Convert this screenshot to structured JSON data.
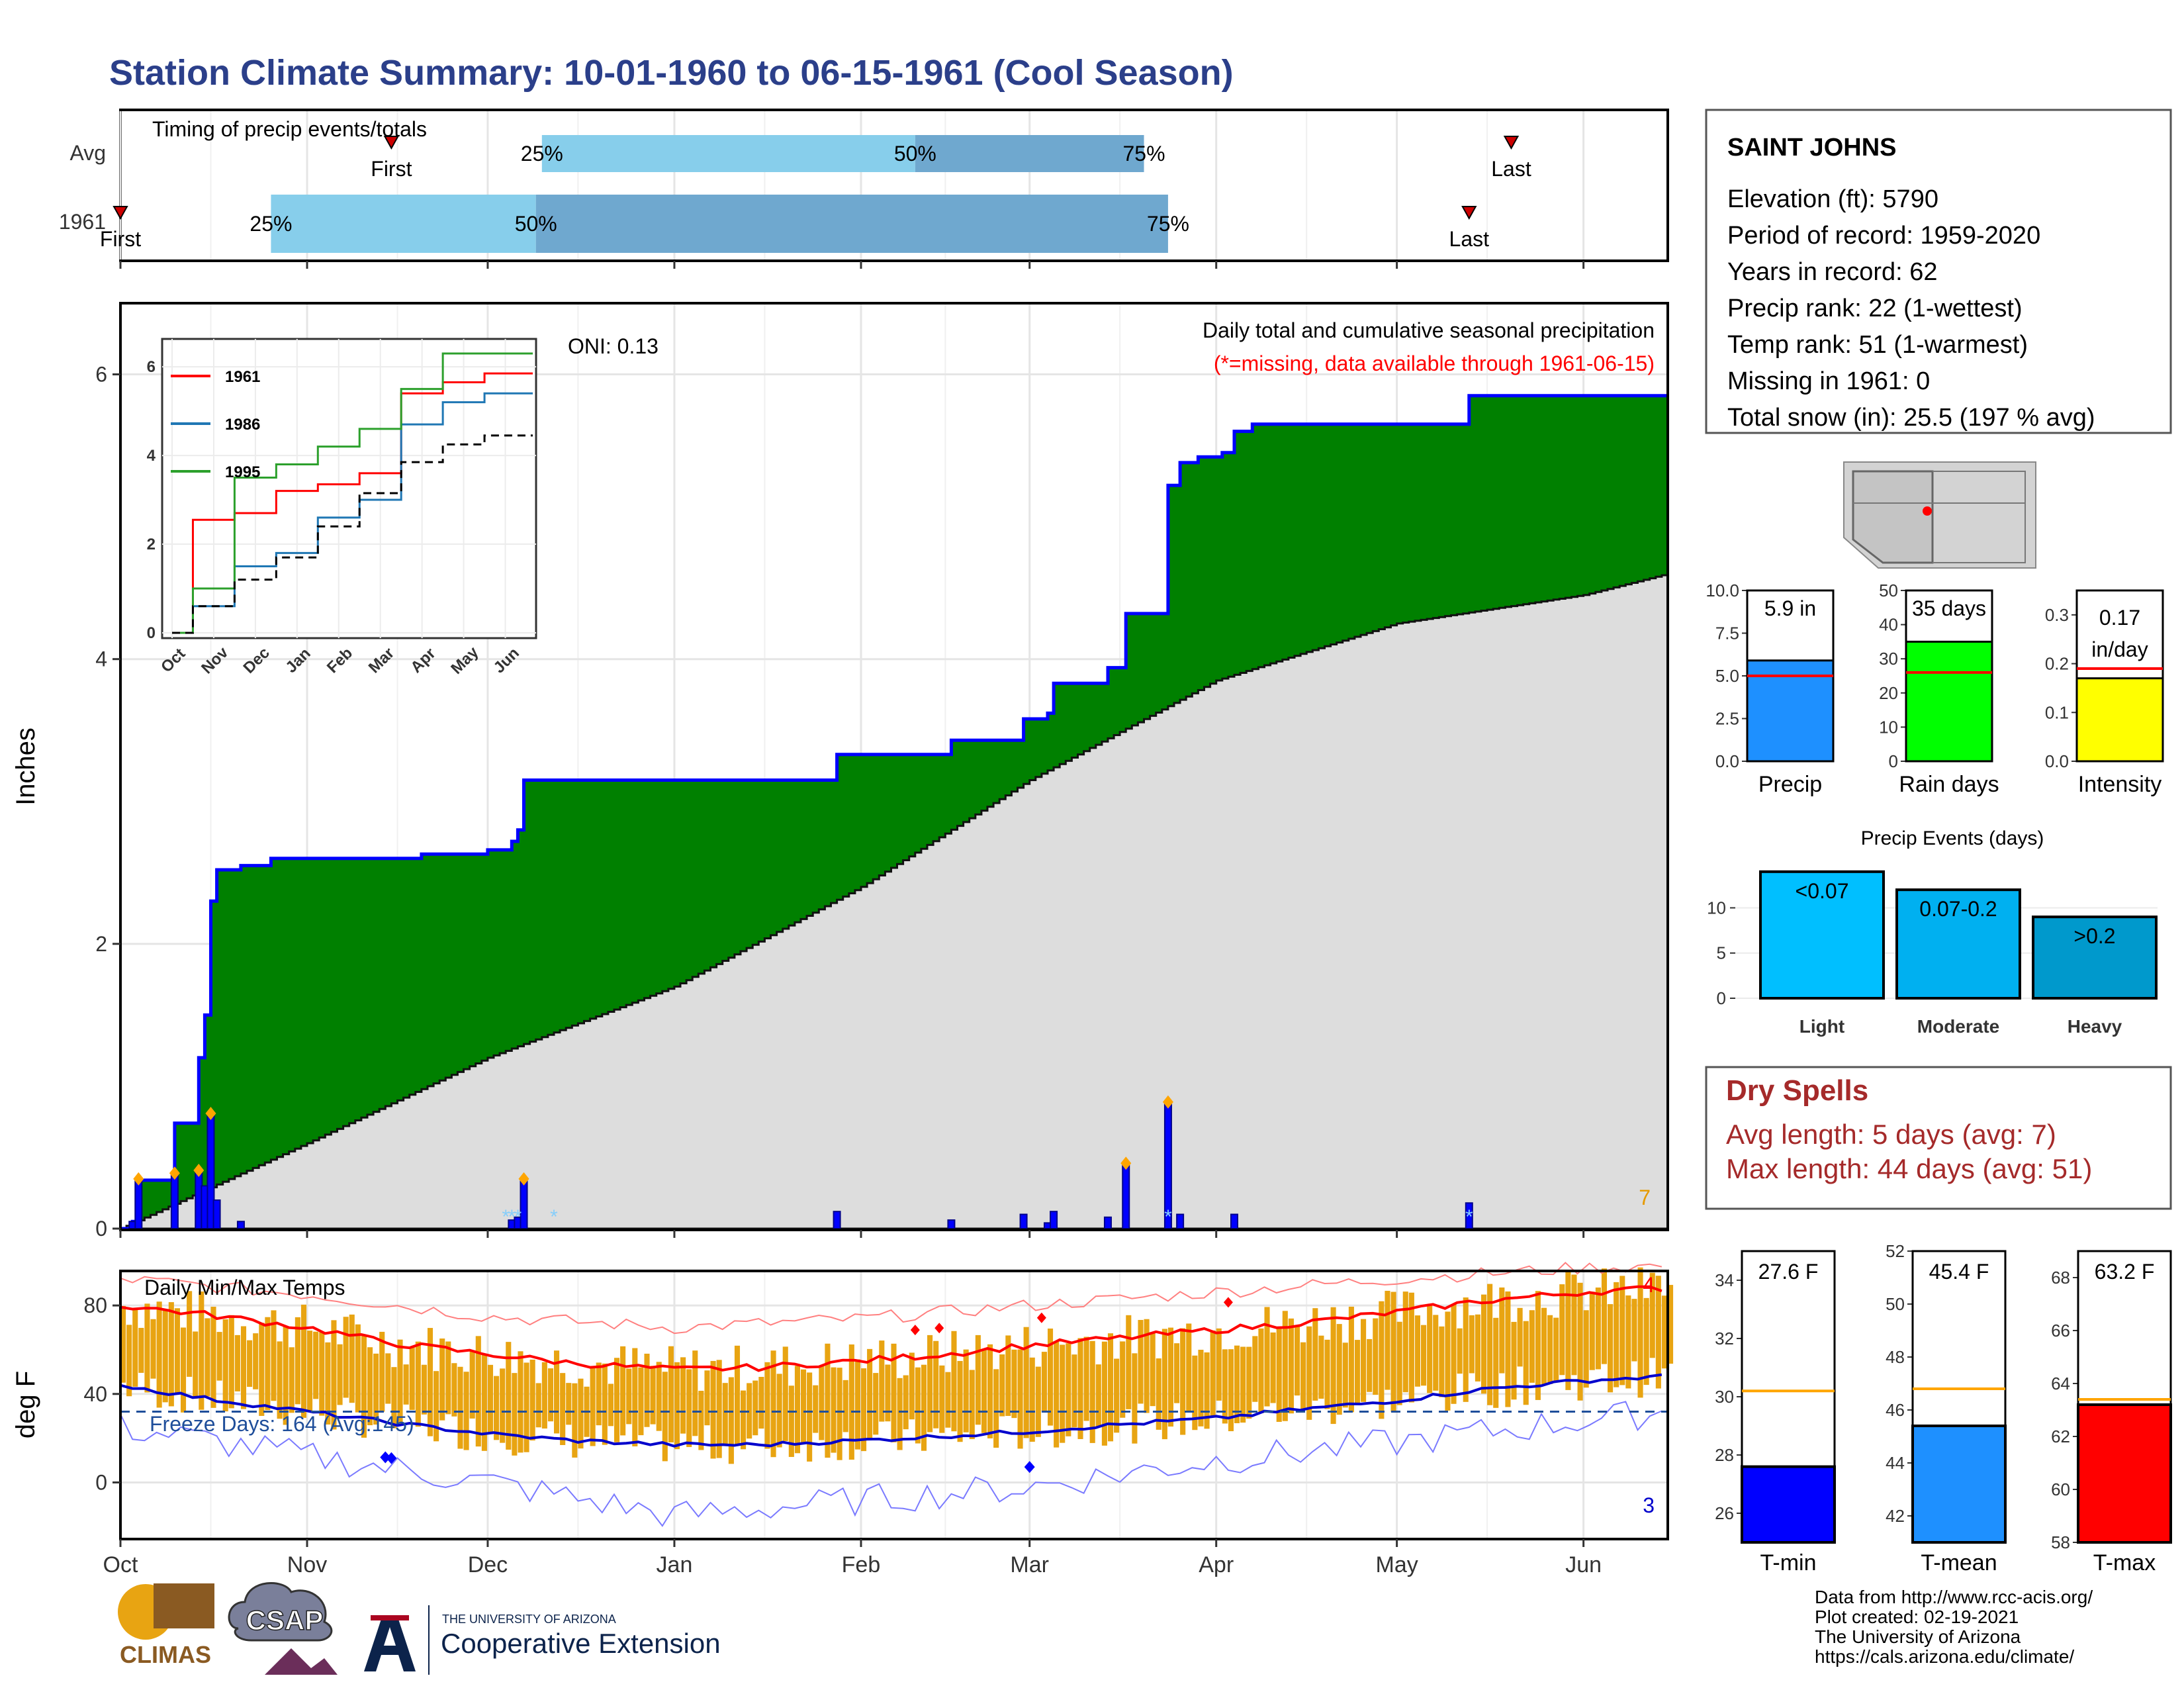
{
  "title": "Station Climate Summary: 10-01-1960 to 06-15-1961 (Cool Season)",
  "colors": {
    "title": "#2b3f8a",
    "light_blue": "#87ceeb",
    "mid_blue": "#6fa8cf",
    "green": "#008000",
    "grey_fill": "#dddddd",
    "blue": "#0000ff",
    "orange": "#ffa500",
    "gold": "#e8a412",
    "red": "#ff0000",
    "dry_red": "#a52a2a",
    "cyan": "#00bfff",
    "yellow": "#ffff00",
    "lime": "#00ff00",
    "dodger": "#1e90ff"
  },
  "timing_panel": {
    "title": "Timing of precip events/totals",
    "rows": [
      {
        "label": "Avg",
        "first": "First",
        "last": "Last",
        "p25": "25%",
        "p50": "50%",
        "p75": "75%"
      },
      {
        "label": "1961",
        "first": "First",
        "last": "Last",
        "p25": "25%",
        "p50": "50%",
        "p75": "75%"
      }
    ]
  },
  "precip_panel": {
    "title": "Daily total and cumulative seasonal precipitation",
    "subtitle": "(*=missing, data available through 1961-06-15)",
    "oni": "ONI: 0.13",
    "ylabel": "Inches",
    "y_ticks": [
      "0",
      "2",
      "4",
      "6"
    ],
    "count_label": "7"
  },
  "inset": {
    "legend": [
      {
        "name": "1961",
        "color": "#ff0000"
      },
      {
        "name": "1986",
        "color": "#1f77b4"
      },
      {
        "name": "1995",
        "color": "#2ca02c"
      }
    ],
    "x_ticks": [
      "Oct",
      "Nov",
      "Dec",
      "Jan",
      "Feb",
      "Mar",
      "Apr",
      "May",
      "Jun"
    ],
    "y_ticks": [
      "0",
      "2",
      "4",
      "6"
    ]
  },
  "temp_panel": {
    "title": "Daily Min/Max Temps",
    "ylabel": "deg F",
    "y_ticks": [
      "0",
      "40",
      "80"
    ],
    "freeze": "Freeze Days: 164 (Avg:145)",
    "count_hot": "4",
    "count_cold": "3"
  },
  "x_months": [
    "Oct",
    "Nov",
    "Dec",
    "Jan",
    "Feb",
    "Mar",
    "Apr",
    "May",
    "Jun"
  ],
  "station": {
    "name": "SAINT JOHNS",
    "lines": [
      "Elevation (ft): 5790",
      "Period of record: 1959-2020",
      "Years in record: 62",
      "Precip rank: 22 (1-wettest)",
      "Temp rank: 51 (1-warmest)",
      "Missing in 1961: 0",
      "Total snow (in): 25.5 (197 % avg)"
    ]
  },
  "summary_bars": [
    {
      "label": "Precip",
      "value_text": "5.9 in",
      "value": 5.9,
      "avg": 5.0,
      "max": 10,
      "ticks": [
        "0.0",
        "2.5",
        "5.0",
        "7.5",
        "10.0"
      ],
      "color": "#1e90ff"
    },
    {
      "label": "Rain days",
      "value_text": "35 days",
      "value": 35,
      "avg": 26,
      "max": 50,
      "ticks": [
        "0",
        "10",
        "20",
        "30",
        "40",
        "50"
      ],
      "color": "#00ff00"
    },
    {
      "label": "Intensity",
      "value_text": "0.17 in/day",
      "value_line1": "0.17",
      "value_line2": "in/day",
      "value": 0.17,
      "avg": 0.19,
      "max": 0.35,
      "ticks": [
        "0.0",
        "0.1",
        "0.2",
        "0.3"
      ],
      "color": "#ffff00"
    }
  ],
  "precip_events": {
    "title": "Precip Events (days)",
    "y_ticks": [
      "0",
      "5",
      "10"
    ],
    "bars": [
      {
        "label": "Light",
        "inner": "<0.07",
        "value": 14,
        "color": "#00bfff"
      },
      {
        "label": "Moderate",
        "inner": "0.07-0.2",
        "value": 12,
        "color": "#00b0f0"
      },
      {
        "label": "Heavy",
        "inner": ">0.2",
        "value": 9,
        "color": "#0099cc"
      }
    ]
  },
  "dry_spells": {
    "title": "Dry Spells",
    "avg": "Avg length: 5 days (avg: 7)",
    "max": "Max length: 44 days (avg: 51)"
  },
  "temp_bars": [
    {
      "label": "T-min",
      "value_text": "27.6 F",
      "value": 27.6,
      "avg": 30.2,
      "min": 25,
      "max": 35,
      "ticks": [
        "26",
        "28",
        "30",
        "32",
        "34"
      ],
      "color": "#0000ff"
    },
    {
      "label": "T-mean",
      "value_text": "45.4 F",
      "value": 45.4,
      "avg": 46.8,
      "min": 41,
      "max": 52,
      "ticks": [
        "42",
        "44",
        "46",
        "48",
        "50",
        "52"
      ],
      "color": "#1e90ff"
    },
    {
      "label": "T-max",
      "value_text": "63.2 F",
      "value": 63.2,
      "avg": 63.4,
      "min": 58,
      "max": 69,
      "ticks": [
        "58",
        "60",
        "62",
        "64",
        "66",
        "68"
      ],
      "color": "#ff0000"
    }
  ],
  "footer": {
    "logos": {
      "climas": "CLIMAS",
      "csap": "CSAP",
      "ua_small": "THE UNIVERSITY OF ARIZONA",
      "ua_big": "Cooperative Extension"
    },
    "credits": [
      "Data from http://www.rcc-acis.org/",
      "Plot created: 02-19-2021",
      "The University of Arizona",
      "https://cals.arizona.edu/climate/"
    ]
  },
  "chart_data": [
    {
      "type": "bar",
      "title": "Timing of precip events/totals",
      "categories": [
        "Avg",
        "1961"
      ],
      "series": [
        {
          "name": "Avg",
          "first": "1960-11-15",
          "p25": "1960-12-10",
          "p50": "1961-02-10",
          "p75": "1961-03-20",
          "last": "1961-05-20"
        },
        {
          "name": "1961",
          "first": "1960-10-01",
          "p25": "1960-10-26",
          "p50": "1960-12-09",
          "p75": "1961-03-24",
          "last": "1961-05-13"
        }
      ]
    },
    {
      "type": "area",
      "title": "Daily total and cumulative seasonal precipitation",
      "ylabel": "Inches",
      "ylim": [
        0,
        6.5
      ],
      "cumulative_1961": [
        [
          "1960-10-01",
          0.0
        ],
        [
          "1960-10-03",
          0.05
        ],
        [
          "1960-10-04",
          0.34
        ],
        [
          "1960-10-09",
          0.34
        ],
        [
          "1960-10-10",
          0.74
        ],
        [
          "1960-10-13",
          0.74
        ],
        [
          "1960-10-14",
          1.2
        ],
        [
          "1960-10-15",
          1.5
        ],
        [
          "1960-10-16",
          2.3
        ],
        [
          "1960-10-17",
          2.52
        ],
        [
          "1960-10-21",
          2.55
        ],
        [
          "1960-10-26",
          2.6
        ],
        [
          "1960-11-20",
          2.63
        ],
        [
          "1960-12-01",
          2.66
        ],
        [
          "1960-12-05",
          2.72
        ],
        [
          "1960-12-06",
          2.8
        ],
        [
          "1960-12-07",
          3.15
        ],
        [
          "1961-01-27",
          3.15
        ],
        [
          "1961-01-28",
          3.33
        ],
        [
          "1961-02-15",
          3.33
        ],
        [
          "1961-02-16",
          3.43
        ],
        [
          "1961-02-27",
          3.43
        ],
        [
          "1961-02-28",
          3.58
        ],
        [
          "1961-03-04",
          3.62
        ],
        [
          "1961-03-05",
          3.83
        ],
        [
          "1961-03-13",
          3.83
        ],
        [
          "1961-03-14",
          3.94
        ],
        [
          "1961-03-16",
          3.94
        ],
        [
          "1961-03-17",
          4.32
        ],
        [
          "1961-03-23",
          4.32
        ],
        [
          "1961-03-24",
          5.22
        ],
        [
          "1961-03-26",
          5.38
        ],
        [
          "1961-03-29",
          5.42
        ],
        [
          "1961-04-02",
          5.45
        ],
        [
          "1961-04-04",
          5.6
        ],
        [
          "1961-04-07",
          5.65
        ],
        [
          "1961-05-12",
          5.65
        ],
        [
          "1961-05-13",
          5.85
        ],
        [
          "1961-06-15",
          5.85
        ]
      ],
      "average_cumulative": [
        [
          "1960-10-01",
          0.0
        ],
        [
          "1960-11-01",
          0.6
        ],
        [
          "1960-12-01",
          1.2
        ],
        [
          "1961-01-01",
          1.7
        ],
        [
          "1961-02-01",
          2.4
        ],
        [
          "1961-03-01",
          3.15
        ],
        [
          "1961-04-01",
          3.85
        ],
        [
          "1961-05-01",
          4.25
        ],
        [
          "1961-06-01",
          4.45
        ],
        [
          "1961-06-15",
          4.6
        ]
      ],
      "daily_bars": [
        [
          "1960-10-03",
          0.05
        ],
        [
          "1960-10-04",
          0.34
        ],
        [
          "1960-10-10",
          0.38
        ],
        [
          "1960-10-14",
          0.4
        ],
        [
          "1960-10-15",
          0.3
        ],
        [
          "1960-10-16",
          0.8
        ],
        [
          "1960-10-17",
          0.2
        ],
        [
          "1960-10-21",
          0.05
        ],
        [
          "1960-12-05",
          0.06
        ],
        [
          "1960-12-06",
          0.08
        ],
        [
          "1960-12-07",
          0.34
        ],
        [
          "1961-01-28",
          0.12
        ],
        [
          "1961-02-16",
          0.06
        ],
        [
          "1961-02-28",
          0.1
        ],
        [
          "1961-03-04",
          0.04
        ],
        [
          "1961-03-05",
          0.12
        ],
        [
          "1961-03-14",
          0.08
        ],
        [
          "1961-03-17",
          0.45
        ],
        [
          "1961-03-24",
          0.88
        ],
        [
          "1961-03-26",
          0.1
        ],
        [
          "1961-04-04",
          0.1
        ],
        [
          "1961-05-13",
          0.18
        ]
      ]
    },
    {
      "type": "line",
      "title": "inset cumulative precipitation",
      "ylim": [
        0,
        6.3
      ],
      "series": [
        {
          "name": "1961",
          "values": [
            0,
            2.55,
            2.7,
            3.2,
            3.35,
            3.6,
            5.4,
            5.65,
            5.85
          ]
        },
        {
          "name": "1986",
          "values": [
            0,
            0.6,
            1.5,
            1.8,
            2.6,
            3.0,
            4.7,
            5.2,
            5.4
          ]
        },
        {
          "name": "1995",
          "values": [
            0,
            1.0,
            3.5,
            3.8,
            4.2,
            4.6,
            5.5,
            6.3,
            6.3
          ]
        },
        {
          "name": "average",
          "values": [
            0,
            0.6,
            1.2,
            1.7,
            2.4,
            3.15,
            3.85,
            4.25,
            4.45
          ]
        }
      ],
      "categories": [
        "Oct",
        "Nov",
        "Dec",
        "Jan",
        "Feb",
        "Mar",
        "Apr",
        "May",
        "Jun"
      ]
    },
    {
      "type": "line",
      "title": "Daily Min/Max Temps",
      "ylabel": "deg F",
      "ylim": [
        -25,
        95
      ],
      "freeze_line": 32,
      "avg_max": [
        [
          "1960-10-01",
          80
        ],
        [
          "1960-10-15",
          76
        ],
        [
          "1960-11-01",
          70
        ],
        [
          "1960-11-15",
          63
        ],
        [
          "1960-12-01",
          58
        ],
        [
          "1960-12-15",
          54
        ],
        [
          "1961-01-01",
          51
        ],
        [
          "1961-01-15",
          52
        ],
        [
          "1961-02-01",
          55
        ],
        [
          "1961-02-15",
          58
        ],
        [
          "1961-03-01",
          62
        ],
        [
          "1961-03-15",
          65
        ],
        [
          "1961-04-01",
          69
        ],
        [
          "1961-04-15",
          72
        ],
        [
          "1961-05-01",
          77
        ],
        [
          "1961-05-15",
          82
        ],
        [
          "1961-06-01",
          86
        ],
        [
          "1961-06-15",
          88
        ]
      ],
      "avg_min": [
        [
          "1960-10-01",
          44
        ],
        [
          "1960-10-15",
          38
        ],
        [
          "1960-11-01",
          32
        ],
        [
          "1960-11-15",
          27
        ],
        [
          "1960-12-01",
          22
        ],
        [
          "1960-12-15",
          19
        ],
        [
          "1961-01-01",
          17
        ],
        [
          "1961-01-15",
          17
        ],
        [
          "1961-02-01",
          19
        ],
        [
          "1961-02-15",
          21
        ],
        [
          "1961-03-01",
          23
        ],
        [
          "1961-03-15",
          26
        ],
        [
          "1961-04-01",
          29
        ],
        [
          "1961-04-15",
          33
        ],
        [
          "1961-05-01",
          37
        ],
        [
          "1961-05-15",
          42
        ],
        [
          "1961-06-01",
          46
        ],
        [
          "1961-06-15",
          48
        ]
      ],
      "record_high": [
        [
          "1960-10-01",
          92
        ],
        [
          "1960-11-01",
          85
        ],
        [
          "1960-12-01",
          75
        ],
        [
          "1961-01-01",
          70
        ],
        [
          "1961-02-01",
          74
        ],
        [
          "1961-03-01",
          80
        ],
        [
          "1961-04-01",
          86
        ],
        [
          "1961-05-01",
          92
        ],
        [
          "1961-06-01",
          97
        ],
        [
          "1961-06-15",
          98
        ]
      ],
      "record_low": [
        [
          "1960-10-01",
          25
        ],
        [
          "1960-11-01",
          12
        ],
        [
          "1960-12-01",
          0
        ],
        [
          "1961-01-01",
          -15
        ],
        [
          "1961-02-01",
          -8
        ],
        [
          "1961-03-01",
          -2
        ],
        [
          "1961-04-01",
          10
        ],
        [
          "1961-05-01",
          18
        ],
        [
          "1961-06-01",
          28
        ],
        [
          "1961-06-15",
          32
        ]
      ],
      "record_high_marks": [
        "1961-02-10",
        "1961-02-14",
        "1961-03-03",
        "1961-04-03"
      ],
      "record_low_marks": [
        "1960-11-14",
        "1960-11-15",
        "1961-03-01"
      ]
    }
  ]
}
